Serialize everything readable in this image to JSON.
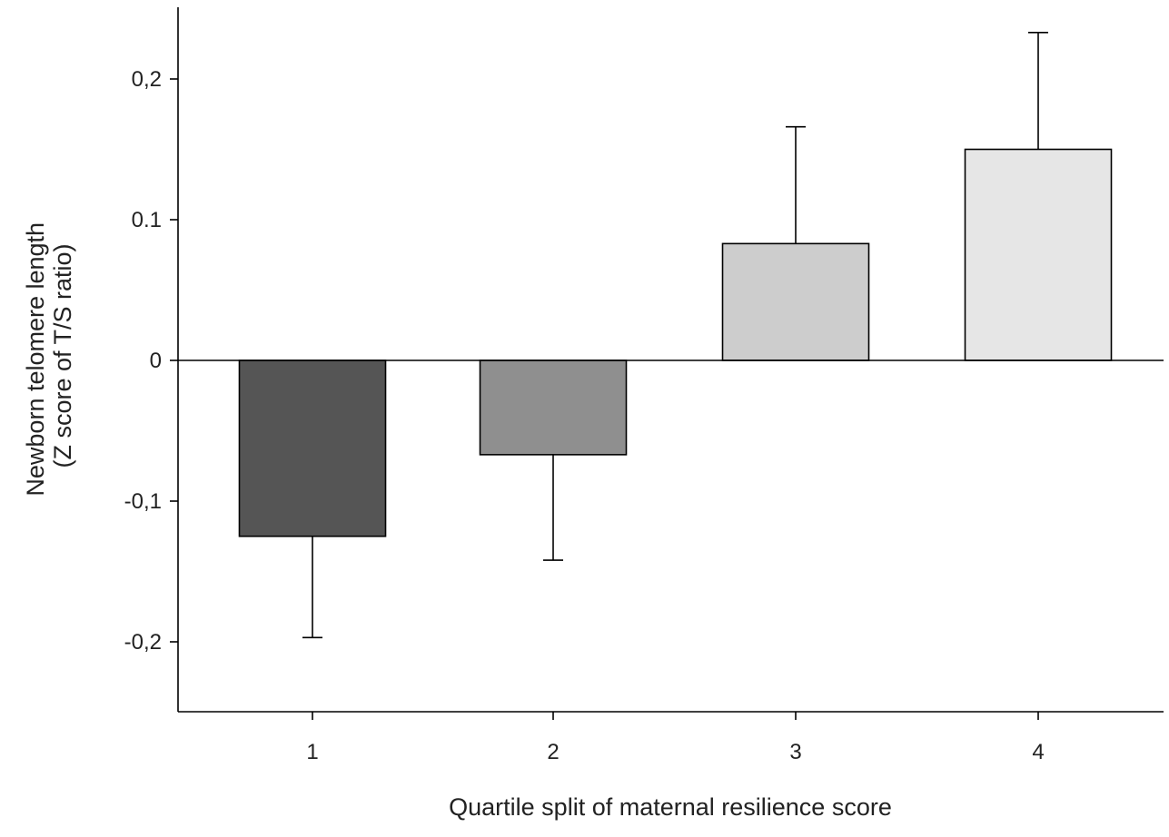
{
  "chart_data": {
    "type": "bar",
    "xlabel": "Quartile split of maternal resilience score",
    "ylabel_lines": [
      "Newborn telomere length",
      "(Z score of T/S ratio)"
    ],
    "categories": [
      "1",
      "2",
      "3",
      "4"
    ],
    "values": [
      -0.125,
      -0.067,
      0.083,
      0.15
    ],
    "errors": [
      0.072,
      0.075,
      0.083,
      0.083
    ],
    "bar_colors": [
      "#555555",
      "#8f8f8f",
      "#cdcdcd",
      "#e6e6e6"
    ],
    "ylim": [
      -0.25,
      0.25
    ],
    "yticks": [
      {
        "value": -0.2,
        "label": "-0,2"
      },
      {
        "value": -0.1,
        "label": "-0,1"
      },
      {
        "value": 0,
        "label": "0"
      },
      {
        "value": 0.1,
        "label": "0.1"
      },
      {
        "value": 0.2,
        "label": "0,2"
      }
    ],
    "zero_line": true,
    "grid": false,
    "legend": "none"
  }
}
